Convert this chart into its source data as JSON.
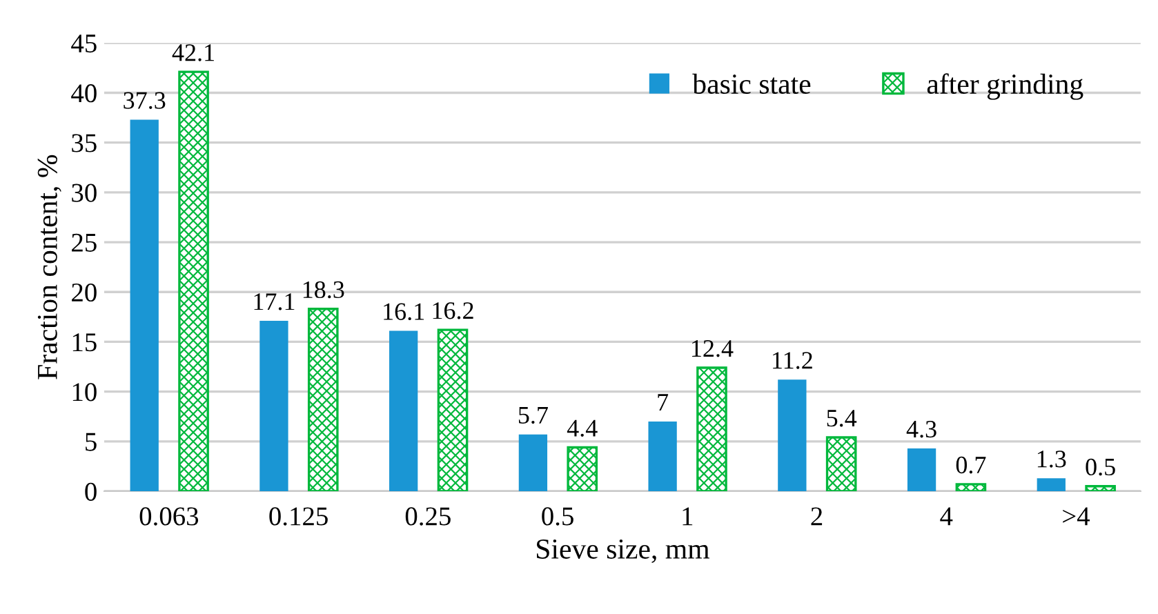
{
  "chart_data": {
    "type": "bar",
    "xlabel": "Sieve size, mm",
    "ylabel": "Fraction content, %",
    "categories": [
      "0.063",
      "0.125",
      "0.25",
      "0.5",
      "1",
      "2",
      "4",
      ">4"
    ],
    "series": [
      {
        "name": "basic state",
        "color": "#1a96d4",
        "values": [
          37.3,
          17.1,
          16.1,
          5.7,
          7,
          11.2,
          4.3,
          1.3
        ]
      },
      {
        "name": "after grinding",
        "color": "#00b83c",
        "values": [
          42.1,
          18.3,
          16.2,
          4.4,
          12.4,
          5.4,
          0.7,
          0.5
        ]
      }
    ],
    "ylim": [
      0,
      45
    ],
    "yticks": [
      0,
      5,
      10,
      15,
      20,
      25,
      30,
      35,
      40,
      45
    ],
    "grid": "y",
    "legend": "top right",
    "data_labels": true
  }
}
